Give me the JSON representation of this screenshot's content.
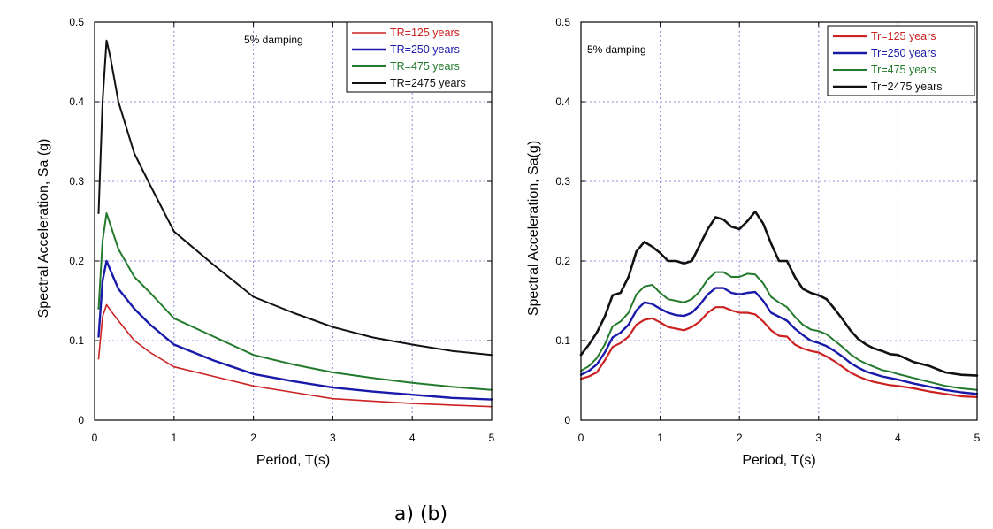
{
  "figure": {
    "caption": "a) (b)"
  },
  "chart_data": [
    {
      "type": "line",
      "panel": "a",
      "xlabel": "Period, T(s)",
      "ylabel": "Spectral Acceleration, Sa (g)",
      "xlim": [
        0,
        5
      ],
      "ylim": [
        0,
        0.5
      ],
      "xticks": [
        0,
        1,
        2,
        3,
        4,
        5
      ],
      "yticks": [
        0,
        0.1,
        0.2,
        0.3,
        0.4,
        0.5
      ],
      "ytick_labels": [
        "0",
        "0.1",
        "0.2",
        "0.3",
        "0.4",
        "0.5"
      ],
      "grid": true,
      "annotation": "5% damping",
      "legend_position": "top-right",
      "series": [
        {
          "name": "TR=125 years",
          "color": "#cc2222",
          "line_width": 1.6,
          "x": [
            0.05,
            0.1,
            0.15,
            0.2,
            0.3,
            0.5,
            0.7,
            1.0,
            1.5,
            2.0,
            2.5,
            3.0,
            3.5,
            4.0,
            4.5,
            5.0
          ],
          "y": [
            0.077,
            0.13,
            0.145,
            0.138,
            0.125,
            0.1,
            0.085,
            0.067,
            0.055,
            0.043,
            0.035,
            0.027,
            0.024,
            0.021,
            0.019,
            0.017
          ]
        },
        {
          "name": "TR=250 years",
          "color": "#1a1aaa",
          "line_width": 2.4,
          "x": [
            0.05,
            0.1,
            0.15,
            0.2,
            0.3,
            0.5,
            0.7,
            1.0,
            1.5,
            2.0,
            2.5,
            3.0,
            3.5,
            4.0,
            4.5,
            5.0
          ],
          "y": [
            0.105,
            0.175,
            0.2,
            0.188,
            0.165,
            0.14,
            0.12,
            0.095,
            0.075,
            0.058,
            0.049,
            0.041,
            0.036,
            0.032,
            0.028,
            0.026
          ]
        },
        {
          "name": "TR=475 years",
          "color": "#237a2c",
          "line_width": 2.0,
          "x": [
            0.05,
            0.1,
            0.15,
            0.2,
            0.3,
            0.5,
            0.7,
            1.0,
            1.5,
            2.0,
            2.5,
            3.0,
            3.5,
            4.0,
            4.5,
            5.0
          ],
          "y": [
            0.14,
            0.225,
            0.26,
            0.245,
            0.215,
            0.18,
            0.16,
            0.128,
            0.105,
            0.082,
            0.07,
            0.06,
            0.053,
            0.047,
            0.042,
            0.038
          ]
        },
        {
          "name": "TR=2475 years",
          "color": "#111111",
          "line_width": 2.0,
          "x": [
            0.05,
            0.1,
            0.15,
            0.2,
            0.3,
            0.5,
            0.7,
            1.0,
            1.5,
            2.0,
            2.5,
            3.0,
            3.5,
            4.0,
            4.5,
            5.0
          ],
          "y": [
            0.26,
            0.4,
            0.477,
            0.455,
            0.4,
            0.335,
            0.295,
            0.237,
            0.195,
            0.155,
            0.135,
            0.117,
            0.104,
            0.095,
            0.087,
            0.082
          ]
        }
      ]
    },
    {
      "type": "line",
      "panel": "b",
      "xlabel": "Period, T(s)",
      "ylabel": "Spectral Acceleration, Sa(g)",
      "xlim": [
        0,
        5
      ],
      "ylim": [
        0,
        0.5
      ],
      "xticks": [
        0,
        1,
        2,
        3,
        4,
        5
      ],
      "yticks": [
        0,
        0.1,
        0.2,
        0.3,
        0.4,
        0.5
      ],
      "ytick_labels": [
        "0",
        "0.1",
        "0.2",
        "0.3",
        "0.4",
        "0.5"
      ],
      "grid": true,
      "annotation": "5% damping",
      "legend_position": "top-right",
      "series": [
        {
          "name": "Tr=125 years",
          "color": "#cc2222",
          "line_width": 2.2,
          "x": [
            0,
            0.1,
            0.2,
            0.3,
            0.4,
            0.5,
            0.6,
            0.7,
            0.8,
            0.9,
            1.0,
            1.1,
            1.2,
            1.3,
            1.4,
            1.5,
            1.6,
            1.7,
            1.8,
            1.9,
            2.0,
            2.1,
            2.2,
            2.3,
            2.4,
            2.5,
            2.6,
            2.7,
            2.8,
            2.9,
            3.0,
            3.1,
            3.2,
            3.3,
            3.4,
            3.5,
            3.6,
            3.7,
            3.8,
            3.9,
            4.0,
            4.2,
            4.4,
            4.6,
            4.8,
            5.0
          ],
          "y": [
            0.052,
            0.055,
            0.06,
            0.075,
            0.092,
            0.097,
            0.105,
            0.12,
            0.126,
            0.128,
            0.123,
            0.117,
            0.115,
            0.113,
            0.117,
            0.124,
            0.135,
            0.142,
            0.142,
            0.138,
            0.135,
            0.135,
            0.133,
            0.124,
            0.113,
            0.106,
            0.105,
            0.095,
            0.09,
            0.087,
            0.085,
            0.08,
            0.074,
            0.067,
            0.06,
            0.055,
            0.051,
            0.048,
            0.046,
            0.044,
            0.043,
            0.04,
            0.036,
            0.033,
            0.03,
            0.029
          ]
        },
        {
          "name": "Tr=250 years",
          "color": "#1a1aaa",
          "line_width": 2.4,
          "x": [
            0,
            0.1,
            0.2,
            0.3,
            0.4,
            0.5,
            0.6,
            0.7,
            0.8,
            0.9,
            1.0,
            1.1,
            1.2,
            1.3,
            1.4,
            1.5,
            1.6,
            1.7,
            1.8,
            1.9,
            2.0,
            2.1,
            2.2,
            2.3,
            2.4,
            2.5,
            2.6,
            2.7,
            2.8,
            2.9,
            3.0,
            3.1,
            3.2,
            3.3,
            3.4,
            3.5,
            3.6,
            3.7,
            3.8,
            3.9,
            4.0,
            4.2,
            4.4,
            4.6,
            4.8,
            5.0
          ],
          "y": [
            0.057,
            0.062,
            0.07,
            0.085,
            0.104,
            0.11,
            0.12,
            0.138,
            0.148,
            0.146,
            0.14,
            0.135,
            0.132,
            0.131,
            0.135,
            0.145,
            0.158,
            0.166,
            0.166,
            0.16,
            0.158,
            0.16,
            0.161,
            0.15,
            0.135,
            0.13,
            0.125,
            0.115,
            0.107,
            0.1,
            0.097,
            0.093,
            0.087,
            0.08,
            0.072,
            0.066,
            0.061,
            0.058,
            0.055,
            0.053,
            0.051,
            0.046,
            0.042,
            0.038,
            0.035,
            0.033
          ]
        },
        {
          "name": "Tr=475 years",
          "color": "#237a2c",
          "line_width": 2.0,
          "x": [
            0,
            0.1,
            0.2,
            0.3,
            0.4,
            0.5,
            0.6,
            0.7,
            0.8,
            0.9,
            1.0,
            1.1,
            1.2,
            1.3,
            1.4,
            1.5,
            1.6,
            1.7,
            1.8,
            1.9,
            2.0,
            2.1,
            2.2,
            2.3,
            2.4,
            2.5,
            2.6,
            2.7,
            2.8,
            2.9,
            3.0,
            3.1,
            3.2,
            3.3,
            3.4,
            3.5,
            3.6,
            3.7,
            3.8,
            3.9,
            4.0,
            4.2,
            4.4,
            4.6,
            4.8,
            5.0
          ],
          "y": [
            0.062,
            0.068,
            0.078,
            0.095,
            0.118,
            0.124,
            0.135,
            0.158,
            0.168,
            0.17,
            0.16,
            0.152,
            0.15,
            0.148,
            0.152,
            0.162,
            0.177,
            0.186,
            0.186,
            0.18,
            0.18,
            0.184,
            0.183,
            0.172,
            0.155,
            0.148,
            0.142,
            0.13,
            0.12,
            0.114,
            0.112,
            0.108,
            0.1,
            0.092,
            0.083,
            0.076,
            0.071,
            0.067,
            0.063,
            0.061,
            0.058,
            0.053,
            0.048,
            0.043,
            0.04,
            0.038
          ]
        },
        {
          "name": "Tr=2475 years",
          "color": "#111111",
          "line_width": 2.6,
          "x": [
            0,
            0.1,
            0.2,
            0.3,
            0.4,
            0.5,
            0.6,
            0.7,
            0.8,
            0.9,
            1.0,
            1.1,
            1.2,
            1.3,
            1.4,
            1.5,
            1.6,
            1.7,
            1.8,
            1.9,
            2.0,
            2.1,
            2.2,
            2.3,
            2.4,
            2.5,
            2.6,
            2.7,
            2.8,
            2.9,
            3.0,
            3.1,
            3.2,
            3.3,
            3.4,
            3.5,
            3.6,
            3.7,
            3.8,
            3.9,
            4.0,
            4.2,
            4.4,
            4.6,
            4.8,
            5.0
          ],
          "y": [
            0.082,
            0.095,
            0.11,
            0.13,
            0.157,
            0.16,
            0.18,
            0.212,
            0.224,
            0.218,
            0.21,
            0.2,
            0.2,
            0.197,
            0.2,
            0.22,
            0.24,
            0.255,
            0.252,
            0.243,
            0.24,
            0.25,
            0.262,
            0.247,
            0.222,
            0.2,
            0.2,
            0.18,
            0.165,
            0.16,
            0.157,
            0.152,
            0.14,
            0.127,
            0.113,
            0.102,
            0.095,
            0.09,
            0.087,
            0.083,
            0.082,
            0.073,
            0.068,
            0.06,
            0.057,
            0.056
          ]
        }
      ]
    }
  ]
}
